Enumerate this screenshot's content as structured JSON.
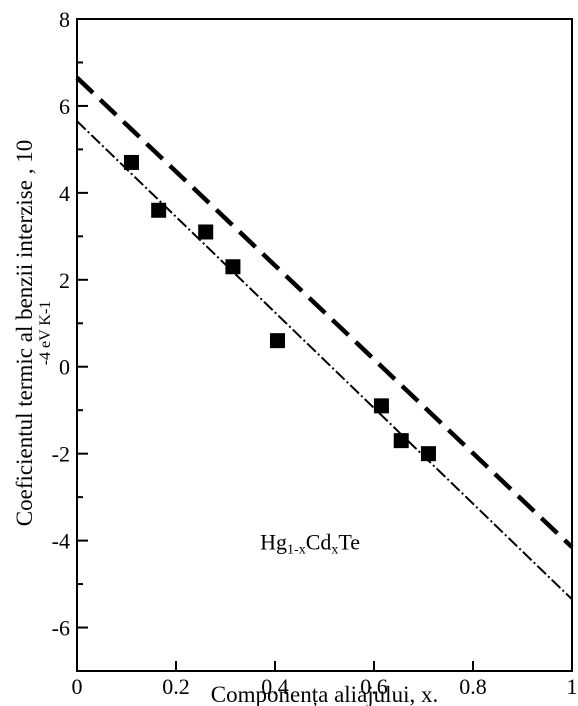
{
  "chart_data": {
    "type": "scatter",
    "xlabel": "Componența aliajului, x.",
    "ylabel_lines": [
      "Coeficientul termic al benzii  interzise , 10",
      "-4 eV K-1"
    ],
    "xlim": [
      0,
      1
    ],
    "ylim": [
      -7,
      8
    ],
    "x_ticks": [
      "0",
      "0.2",
      "0.4",
      "0.6",
      "0.8",
      "1"
    ],
    "x_tick_values": [
      0,
      0.2,
      0.4,
      0.6,
      0.8,
      1
    ],
    "y_ticks": [
      "-6",
      "-4",
      "-2",
      "0",
      "2",
      "4",
      "6",
      "8"
    ],
    "y_tick_values": [
      -6,
      -4,
      -2,
      0,
      2,
      4,
      6,
      8
    ],
    "y_minor_tick_values": [
      -7,
      -5,
      -3,
      -1,
      1,
      3,
      5,
      7
    ],
    "grid": false,
    "annotation": {
      "parts": [
        {
          "text": "Hg",
          "sub": false
        },
        {
          "text": "1-x",
          "sub": true
        },
        {
          "text": "Cd",
          "sub": false
        },
        {
          "text": "x",
          "sub": true
        },
        {
          "text": "Te",
          "sub": false
        }
      ],
      "x": 0.37,
      "y": -4.2
    },
    "series": [
      {
        "kind": "markers",
        "marker": "square",
        "color": "#000000",
        "x": [
          0.11,
          0.165,
          0.26,
          0.315,
          0.405,
          0.615,
          0.655,
          0.71
        ],
        "y": [
          4.7,
          3.6,
          3.1,
          2.3,
          0.6,
          -0.9,
          -1.7,
          -2.0
        ]
      },
      {
        "kind": "line",
        "style": "dashed",
        "color": "#000000",
        "x": [
          0,
          1
        ],
        "y": [
          6.65,
          -4.15
        ]
      },
      {
        "kind": "line",
        "style": "dash-dot",
        "color": "#000000",
        "x": [
          0,
          1
        ],
        "y": [
          5.65,
          -5.35
        ]
      }
    ]
  }
}
